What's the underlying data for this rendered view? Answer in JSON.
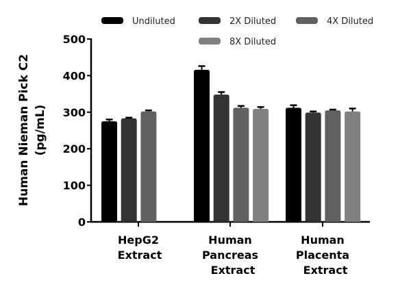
{
  "chart_data": {
    "type": "bar",
    "title": "",
    "xlabel": "",
    "ylabel": "Human Nieman Pick C2 (pg/mL)",
    "ylabel_lines": [
      "Human Nieman Pick C2",
      "(pg/mL)"
    ],
    "ylim": [
      0,
      500
    ],
    "yticks": [
      0,
      100,
      200,
      300,
      400,
      500
    ],
    "grid": false,
    "legend_position": "top",
    "categories": [
      "HepG2 Extract",
      "Human Pancreas Extract",
      "Human Placenta Extract"
    ],
    "category_label_lines": [
      [
        "HepG2",
        "Extract"
      ],
      [
        "Human",
        "Pancreas",
        "Extract"
      ],
      [
        "Human",
        "Placenta",
        "Extract"
      ]
    ],
    "series": [
      {
        "name": "Undiluted",
        "color": "#000000",
        "values": [
          275,
          416,
          312
        ],
        "errors": [
          5,
          10,
          7
        ]
      },
      {
        "name": "2X Diluted",
        "color": "#333333",
        "values": [
          283,
          348,
          299
        ],
        "errors": [
          2,
          7,
          3
        ]
      },
      {
        "name": "4X Diluted",
        "color": "#616161",
        "values": [
          302,
          312,
          305
        ],
        "errors": [
          3,
          5,
          2
        ]
      },
      {
        "name": "8X Diluted",
        "color": "#808080",
        "values": null,
        "values_by_category": [
          null,
          309,
          302
        ],
        "errors_by_category": [
          null,
          5,
          8
        ]
      }
    ]
  }
}
